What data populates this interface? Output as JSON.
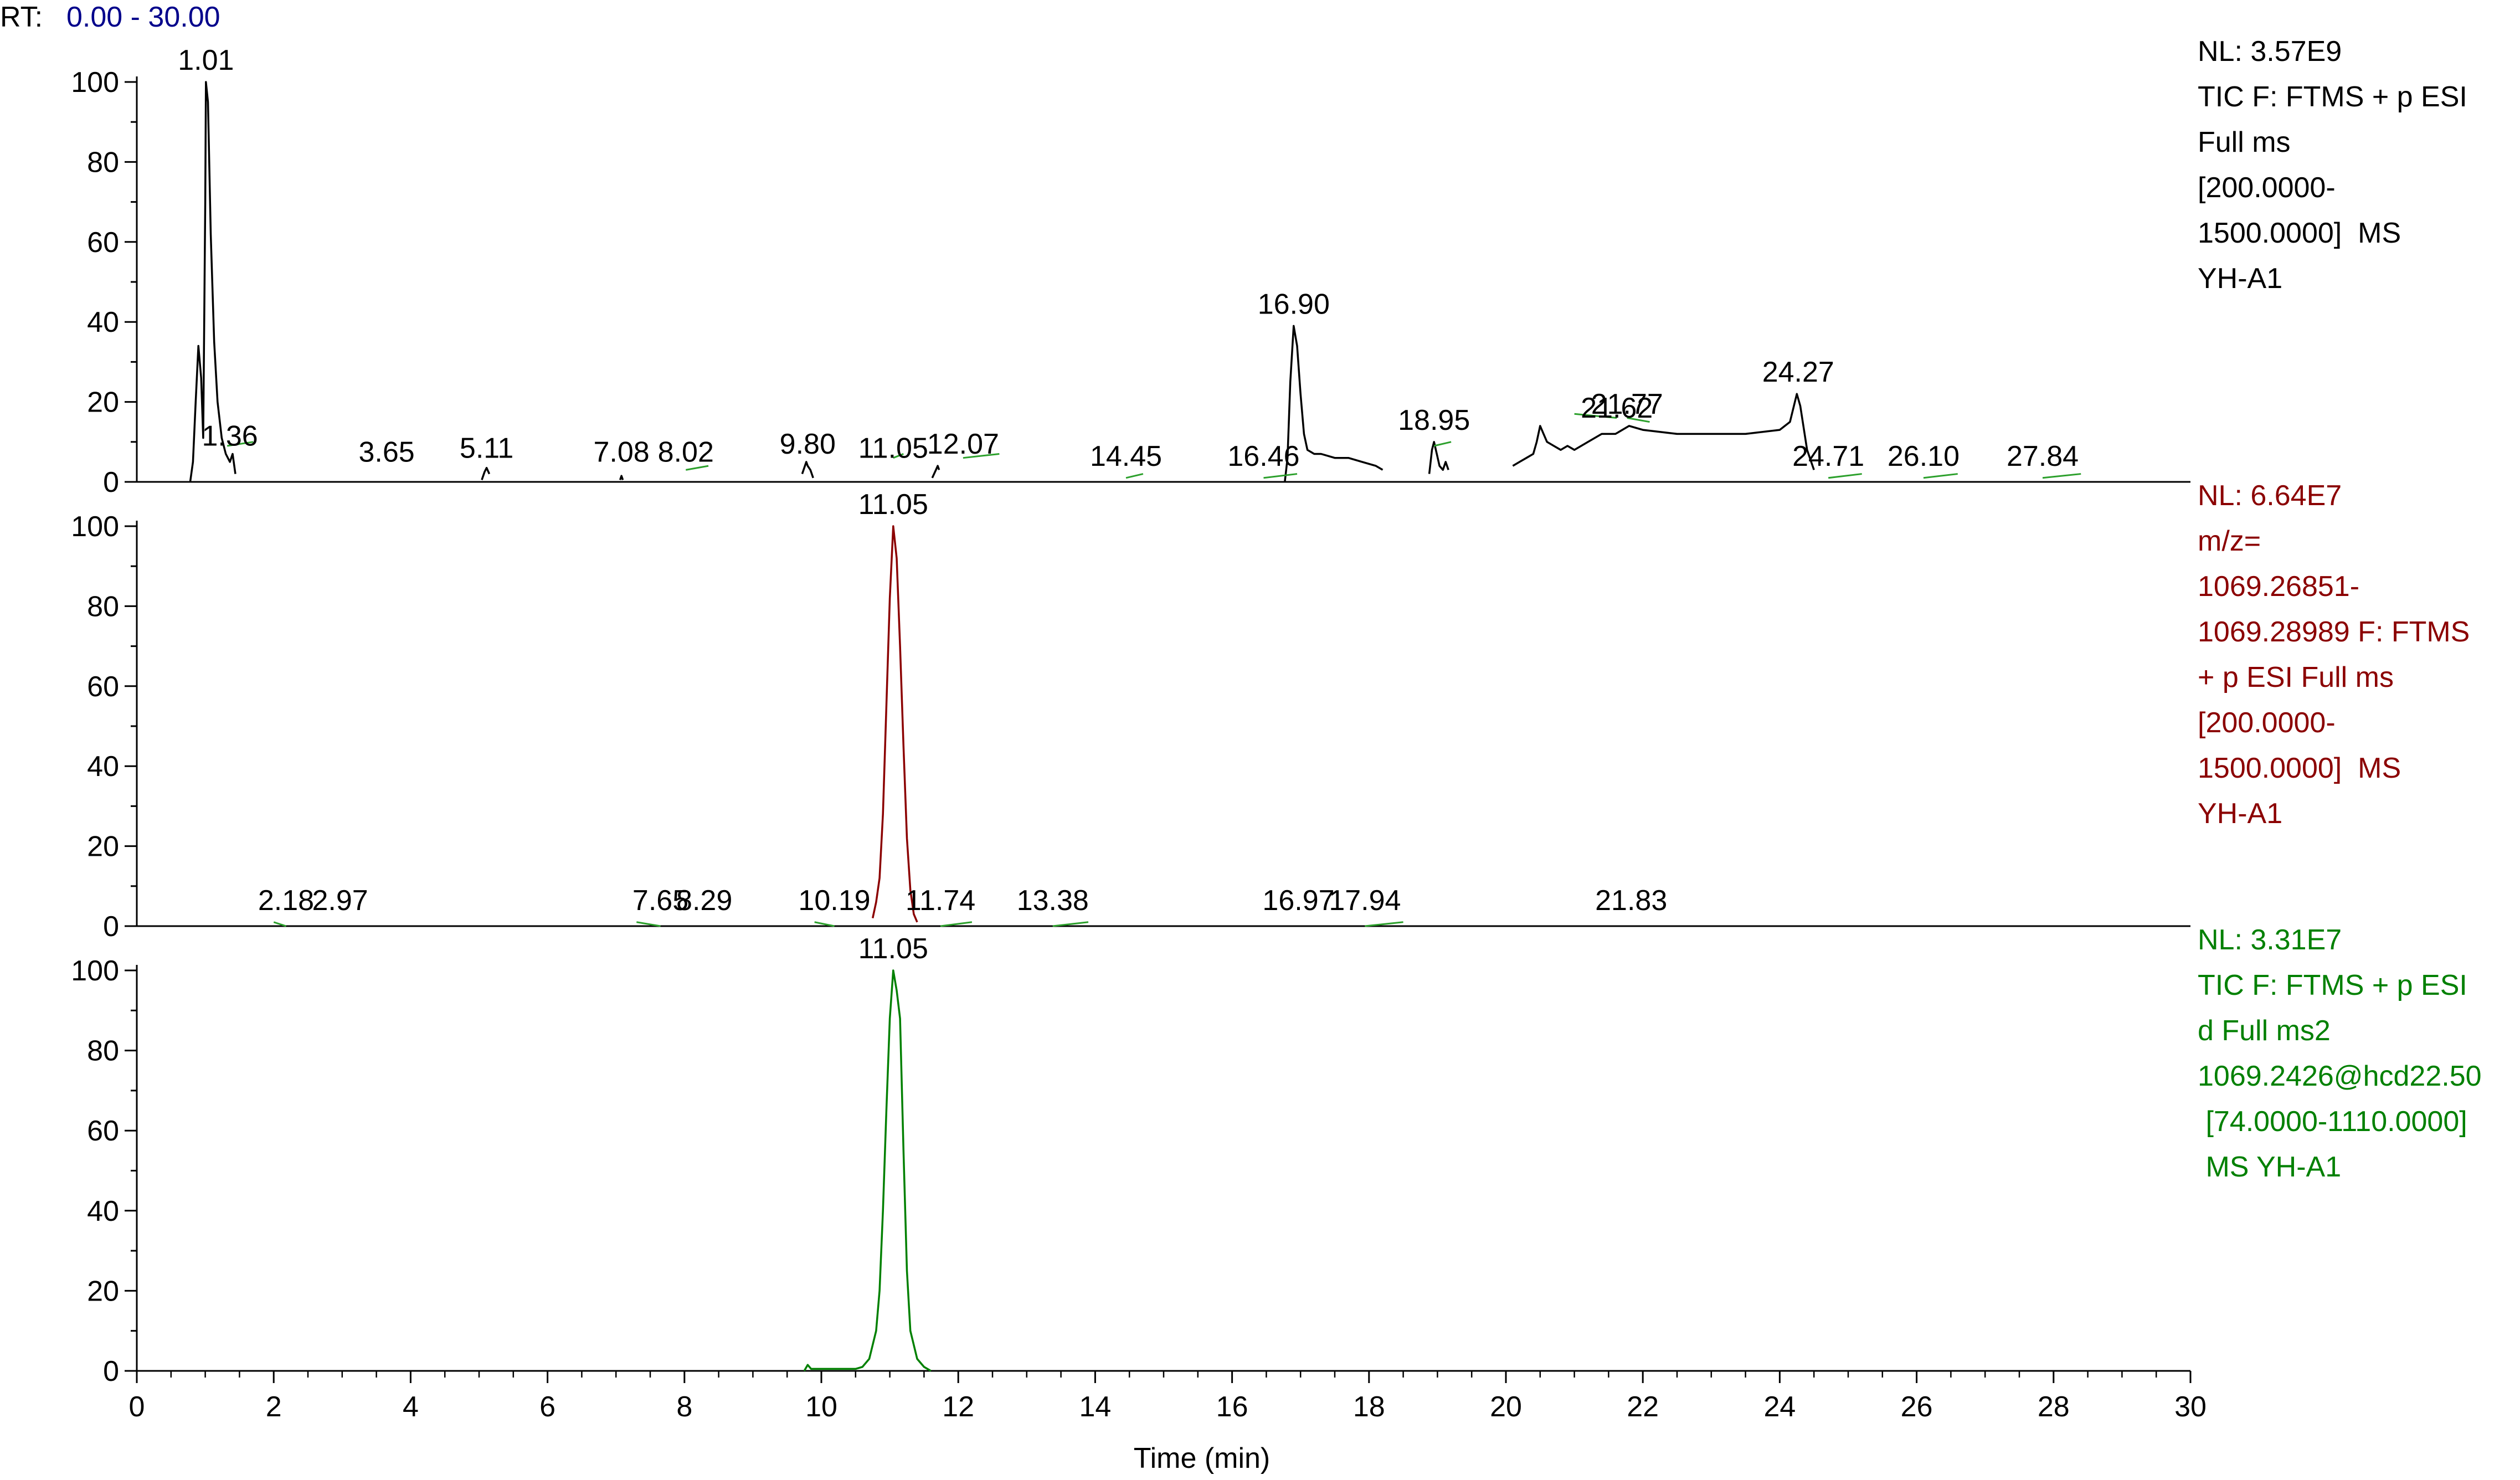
{
  "header": {
    "rt_label": "RT:",
    "rt_range": "0.00 - 30.00"
  },
  "colors": {
    "panel1": "#000000",
    "panel2": "#8b0000",
    "panel3": "#008000",
    "annot_line": "#2ca02c",
    "rt_range": "#00008b"
  },
  "xaxis": {
    "label": "Time (min)",
    "min": 0,
    "max": 30,
    "ticks": [
      0,
      2,
      4,
      6,
      8,
      10,
      12,
      14,
      16,
      18,
      20,
      22,
      24,
      26,
      28,
      30
    ]
  },
  "chart_data": [
    {
      "type": "line",
      "name": "panel-tic-ms1",
      "ylim": [
        0,
        100
      ],
      "yticks": [
        0,
        20,
        40,
        60,
        80,
        100
      ],
      "info": [
        "NL: 3.57E9",
        "TIC F: FTMS + p ESI",
        "Full ms",
        "[200.0000-",
        "1500.0000]  MS",
        "YH-A1"
      ],
      "peak_labels": [
        {
          "rt": "1.01",
          "x": 1.01,
          "y": 100
        },
        {
          "rt": "1.36",
          "x": 1.36,
          "y": 6
        },
        {
          "rt": "3.65",
          "x": 3.65,
          "y": 2
        },
        {
          "rt": "5.11",
          "x": 5.11,
          "y": 3
        },
        {
          "rt": "7.08",
          "x": 7.08,
          "y": 2
        },
        {
          "rt": "8.02",
          "x": 8.02,
          "y": 2
        },
        {
          "rt": "9.80",
          "x": 9.8,
          "y": 4
        },
        {
          "rt": "11.05",
          "x": 11.05,
          "y": 3
        },
        {
          "rt": "12.07",
          "x": 12.07,
          "y": 4
        },
        {
          "rt": "14.45",
          "x": 14.45,
          "y": 1
        },
        {
          "rt": "16.46",
          "x": 16.46,
          "y": 1
        },
        {
          "rt": "16.90",
          "x": 16.9,
          "y": 39
        },
        {
          "rt": "18.95",
          "x": 18.95,
          "y": 10
        },
        {
          "rt": "21.62",
          "x": 21.62,
          "y": 13
        },
        {
          "rt": "21.77",
          "x": 21.77,
          "y": 14
        },
        {
          "rt": "24.27",
          "x": 24.27,
          "y": 22
        },
        {
          "rt": "24.71",
          "x": 24.71,
          "y": 1
        },
        {
          "rt": "26.10",
          "x": 26.1,
          "y": 1
        },
        {
          "rt": "27.84",
          "x": 27.84,
          "y": 1
        }
      ],
      "segments": [
        [
          [
            0.78,
            0
          ],
          [
            0.82,
            5
          ],
          [
            0.86,
            20
          ],
          [
            0.9,
            34
          ],
          [
            0.94,
            26
          ],
          [
            0.97,
            11
          ],
          [
            1.0,
            70
          ],
          [
            1.01,
            100
          ],
          [
            1.04,
            95
          ],
          [
            1.08,
            62
          ],
          [
            1.13,
            35
          ],
          [
            1.18,
            20
          ],
          [
            1.24,
            11
          ],
          [
            1.3,
            7
          ],
          [
            1.36,
            5
          ],
          [
            1.4,
            7
          ],
          [
            1.44,
            2
          ]
        ],
        [
          [
            5.04,
            0.5
          ],
          [
            5.08,
            2.5
          ],
          [
            5.11,
            3.5
          ],
          [
            5.15,
            2
          ]
        ],
        [
          [
            7.06,
            0.5
          ],
          [
            7.08,
            1.5
          ],
          [
            7.1,
            0.5
          ]
        ],
        [
          [
            9.72,
            2
          ],
          [
            9.78,
            5
          ],
          [
            9.8,
            4
          ],
          [
            9.84,
            3
          ],
          [
            9.88,
            1
          ]
        ],
        [
          [
            11.62,
            1
          ],
          [
            11.66,
            2.5
          ],
          [
            11.7,
            4
          ],
          [
            11.72,
            3
          ]
        ],
        [
          [
            16.77,
            0
          ],
          [
            16.81,
            6
          ],
          [
            16.85,
            25
          ],
          [
            16.9,
            39
          ],
          [
            16.95,
            34
          ],
          [
            17.0,
            22
          ],
          [
            17.05,
            12
          ],
          [
            17.1,
            8
          ],
          [
            17.2,
            7
          ],
          [
            17.3,
            7
          ],
          [
            17.5,
            6
          ],
          [
            17.7,
            6
          ],
          [
            17.9,
            5
          ],
          [
            18.1,
            4
          ],
          [
            18.2,
            3
          ]
        ],
        [
          [
            18.88,
            2
          ],
          [
            18.92,
            8
          ],
          [
            18.95,
            10
          ],
          [
            18.99,
            7
          ],
          [
            19.03,
            4
          ],
          [
            19.08,
            3
          ],
          [
            19.12,
            5
          ],
          [
            19.16,
            3
          ]
        ],
        [
          [
            20.1,
            4
          ],
          [
            20.2,
            5
          ],
          [
            20.3,
            6
          ],
          [
            20.4,
            7
          ],
          [
            20.45,
            10
          ],
          [
            20.5,
            14
          ],
          [
            20.55,
            12
          ],
          [
            20.6,
            10
          ],
          [
            20.7,
            9
          ],
          [
            20.8,
            8
          ],
          [
            20.9,
            9
          ],
          [
            21.0,
            8
          ],
          [
            21.2,
            10
          ],
          [
            21.4,
            12
          ],
          [
            21.6,
            12
          ],
          [
            21.8,
            14
          ],
          [
            22.0,
            13
          ],
          [
            22.5,
            12
          ],
          [
            23.0,
            12
          ],
          [
            23.5,
            12
          ],
          [
            24.0,
            13
          ],
          [
            24.15,
            15
          ],
          [
            24.25,
            22
          ],
          [
            24.3,
            19
          ],
          [
            24.4,
            8
          ],
          [
            24.5,
            3
          ]
        ]
      ],
      "annotation_ticks": [
        [
          [
            1.32,
            9
          ],
          [
            1.7,
            10
          ]
        ],
        [
          [
            8.02,
            3
          ],
          [
            8.35,
            4
          ]
        ],
        [
          [
            11.05,
            6
          ],
          [
            11.2,
            7
          ]
        ],
        [
          [
            12.07,
            6
          ],
          [
            12.6,
            7
          ]
        ],
        [
          [
            14.45,
            1
          ],
          [
            14.7,
            2
          ]
        ],
        [
          [
            16.46,
            1
          ],
          [
            16.95,
            2
          ]
        ],
        [
          [
            18.95,
            9
          ],
          [
            19.2,
            10
          ]
        ],
        [
          [
            21.0,
            17
          ],
          [
            21.62,
            16
          ]
        ],
        [
          [
            21.77,
            16
          ],
          [
            22.1,
            15
          ]
        ],
        [
          [
            24.71,
            1
          ],
          [
            25.2,
            2
          ]
        ],
        [
          [
            26.1,
            1
          ],
          [
            26.6,
            2
          ]
        ],
        [
          [
            27.84,
            1
          ],
          [
            28.4,
            2
          ]
        ]
      ]
    },
    {
      "type": "line",
      "name": "panel-xic",
      "ylim": [
        0,
        100
      ],
      "yticks": [
        0,
        20,
        40,
        60,
        80,
        100
      ],
      "info": [
        "NL: 6.64E7",
        "m/z=",
        "1069.26851-",
        "1069.28989 F: FTMS",
        "+ p ESI Full ms",
        "[200.0000-",
        "1500.0000]  MS",
        "YH-A1"
      ],
      "peak_labels": [
        {
          "rt": "2.18",
          "x": 2.18,
          "y": 1
        },
        {
          "rt": "2.97",
          "x": 2.97,
          "y": 1
        },
        {
          "rt": "7.65",
          "x": 7.65,
          "y": 1
        },
        {
          "rt": "8.29",
          "x": 8.29,
          "y": 1
        },
        {
          "rt": "10.19",
          "x": 10.19,
          "y": 1
        },
        {
          "rt": "11.05",
          "x": 11.05,
          "y": 100
        },
        {
          "rt": "11.74",
          "x": 11.74,
          "y": 1
        },
        {
          "rt": "13.38",
          "x": 13.38,
          "y": 1
        },
        {
          "rt": "16.97",
          "x": 16.97,
          "y": 1
        },
        {
          "rt": "17.94",
          "x": 17.94,
          "y": 1
        },
        {
          "rt": "21.83",
          "x": 21.83,
          "y": 1
        }
      ],
      "segments": [
        [
          [
            10.75,
            2
          ],
          [
            10.8,
            6
          ],
          [
            10.85,
            12
          ],
          [
            10.9,
            28
          ],
          [
            10.95,
            55
          ],
          [
            11.0,
            82
          ],
          [
            11.05,
            100
          ],
          [
            11.1,
            92
          ],
          [
            11.15,
            70
          ],
          [
            11.2,
            45
          ],
          [
            11.25,
            22
          ],
          [
            11.3,
            9
          ],
          [
            11.35,
            3
          ],
          [
            11.4,
            1
          ]
        ]
      ],
      "annotation_ticks": [
        [
          [
            2.0,
            1
          ],
          [
            2.18,
            0
          ]
        ],
        [
          [
            7.3,
            1
          ],
          [
            7.65,
            0
          ]
        ],
        [
          [
            9.9,
            1
          ],
          [
            10.19,
            0
          ]
        ],
        [
          [
            11.74,
            0
          ],
          [
            12.2,
            1
          ]
        ],
        [
          [
            13.38,
            0
          ],
          [
            13.9,
            1
          ]
        ],
        [
          [
            17.94,
            0
          ],
          [
            18.5,
            1
          ]
        ]
      ]
    },
    {
      "type": "line",
      "name": "panel-tic-ms2",
      "ylim": [
        0,
        100
      ],
      "yticks": [
        0,
        20,
        40,
        60,
        80,
        100
      ],
      "info": [
        "NL: 3.31E7",
        "TIC F: FTMS + p ESI",
        "d Full ms2",
        "1069.2426@hcd22.50",
        " [74.0000-1110.0000]",
        " MS YH-A1"
      ],
      "peak_labels": [
        {
          "rt": "11.05",
          "x": 11.05,
          "y": 100
        }
      ],
      "segments": [
        [
          [
            9.75,
            0
          ],
          [
            9.8,
            1.5
          ],
          [
            9.85,
            0.5
          ],
          [
            10.0,
            0.5
          ],
          [
            10.3,
            0.5
          ],
          [
            10.5,
            0.5
          ],
          [
            10.6,
            1
          ],
          [
            10.7,
            3
          ],
          [
            10.8,
            10
          ],
          [
            10.85,
            20
          ],
          [
            10.9,
            40
          ],
          [
            10.95,
            65
          ],
          [
            11.0,
            88
          ],
          [
            11.05,
            100
          ],
          [
            11.1,
            95
          ],
          [
            11.15,
            88
          ],
          [
            11.2,
            55
          ],
          [
            11.25,
            25
          ],
          [
            11.3,
            10
          ],
          [
            11.4,
            3
          ],
          [
            11.5,
            1
          ],
          [
            11.6,
            0
          ]
        ]
      ],
      "annotation_ticks": []
    }
  ]
}
